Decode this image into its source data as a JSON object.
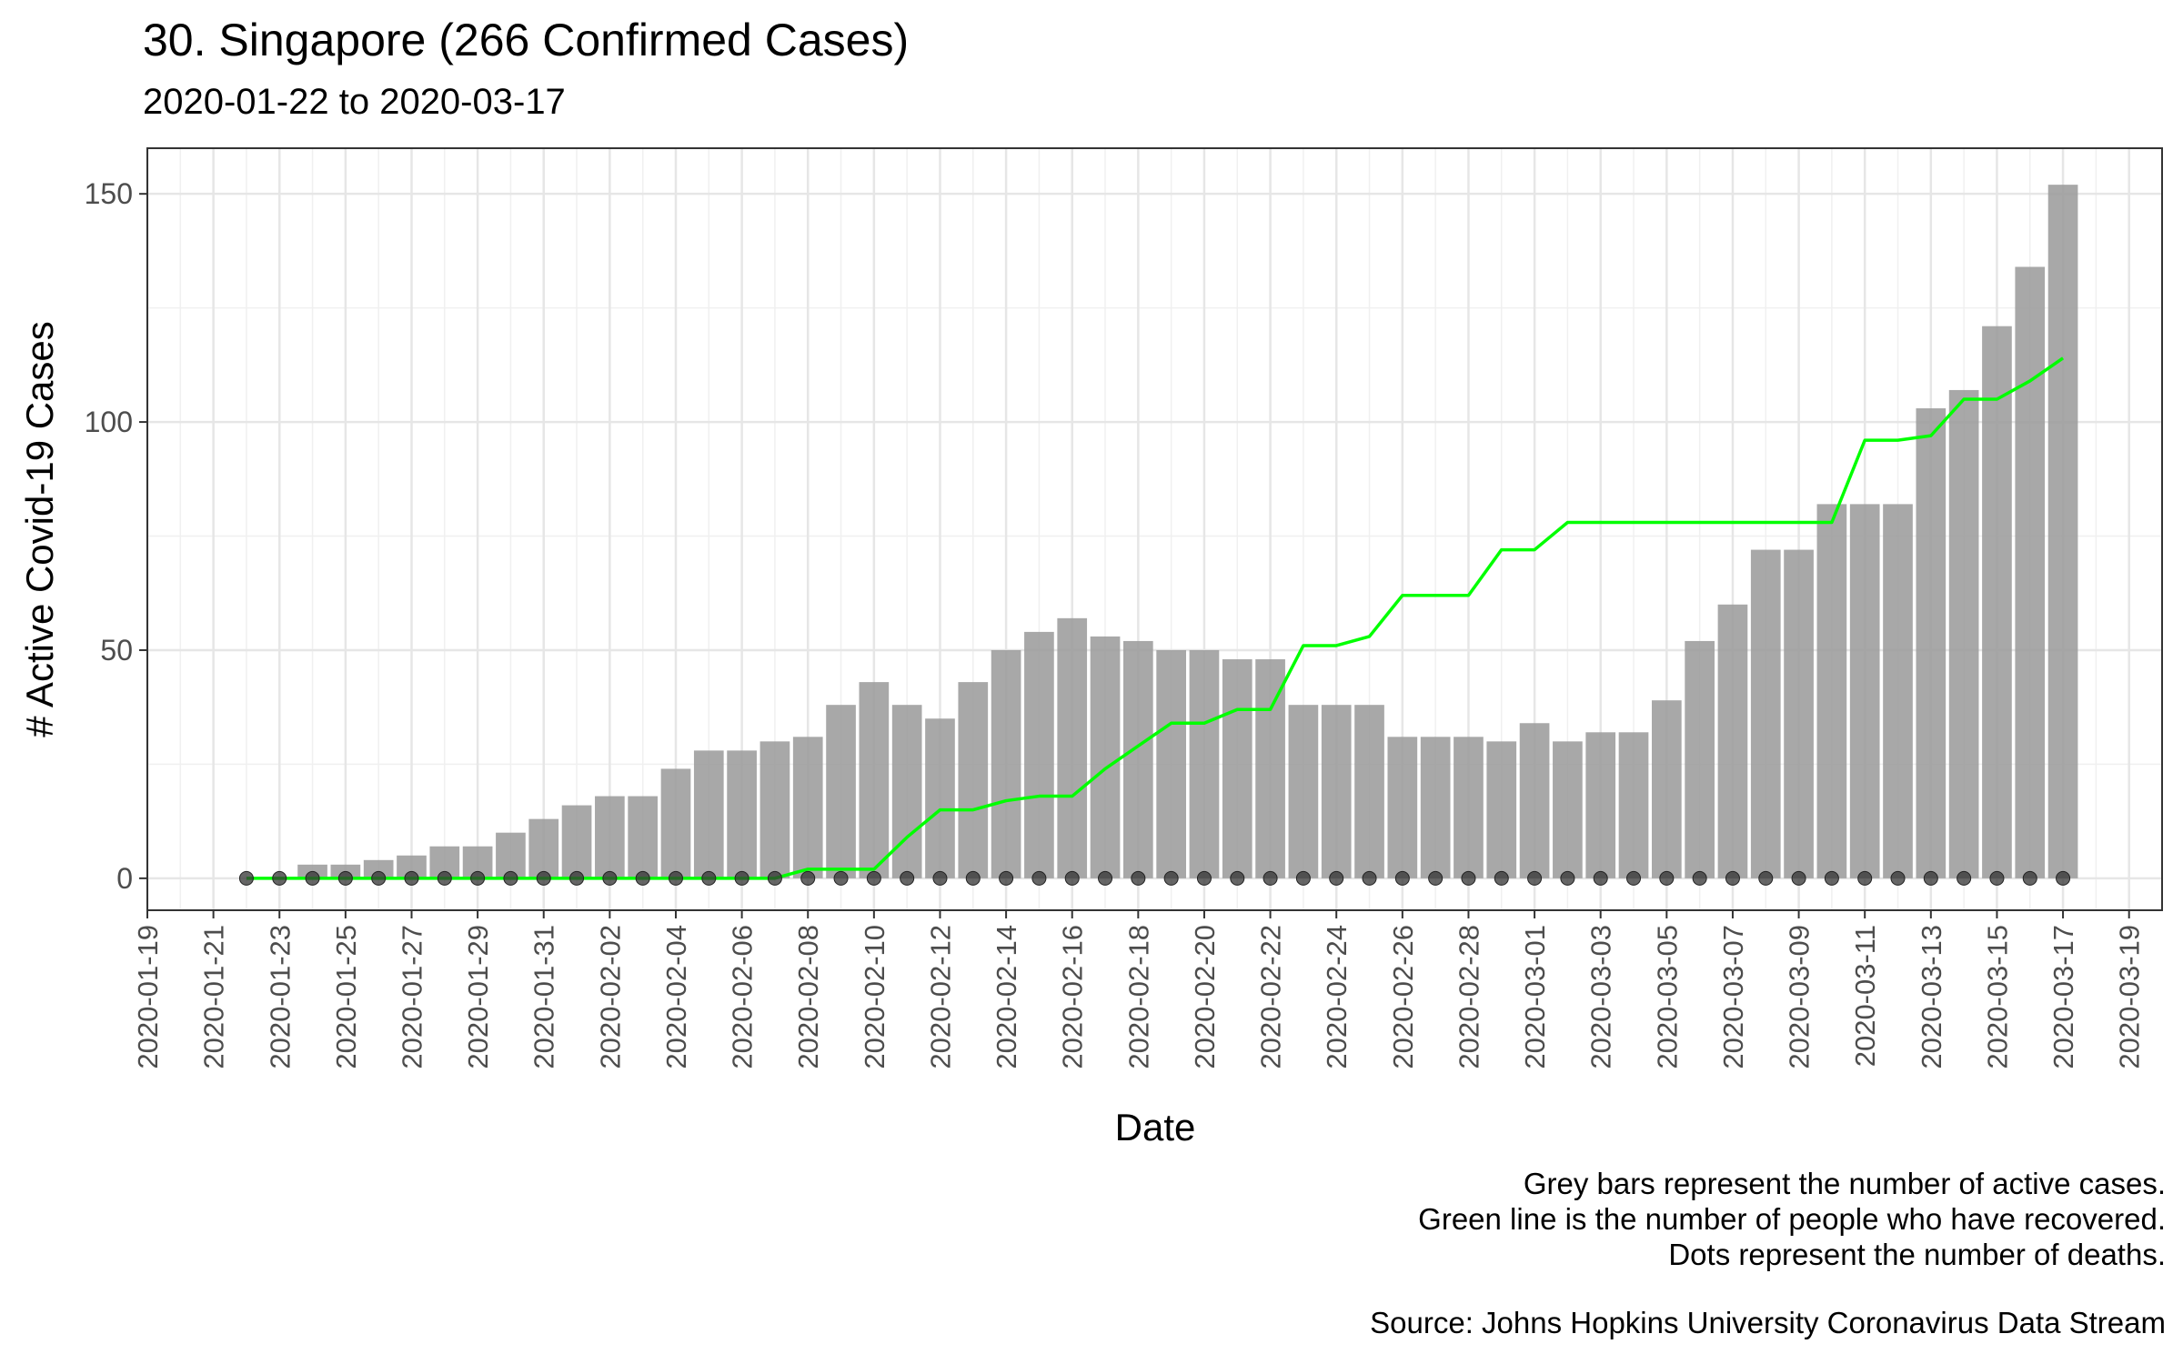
{
  "title": "30. Singapore (266 Confirmed Cases)",
  "subtitle": "2020-01-22 to 2020-03-17",
  "captions": {
    "line1": "Grey bars represent the number of active cases.",
    "line2": "Green line is the number of people who have recovered.",
    "line3": "Dots represent the number of deaths.",
    "source": "Source: Johns Hopkins University Coronavirus Data Stream"
  },
  "chart_data": {
    "type": "bar",
    "xlabel": "Date",
    "ylabel": "# Active Covid-19 Cases",
    "start_date": "2020-01-22",
    "dates": [
      "2020-01-22",
      "2020-01-23",
      "2020-01-24",
      "2020-01-25",
      "2020-01-26",
      "2020-01-27",
      "2020-01-28",
      "2020-01-29",
      "2020-01-30",
      "2020-01-31",
      "2020-02-01",
      "2020-02-02",
      "2020-02-03",
      "2020-02-04",
      "2020-02-05",
      "2020-02-06",
      "2020-02-07",
      "2020-02-08",
      "2020-02-09",
      "2020-02-10",
      "2020-02-11",
      "2020-02-12",
      "2020-02-13",
      "2020-02-14",
      "2020-02-15",
      "2020-02-16",
      "2020-02-17",
      "2020-02-18",
      "2020-02-19",
      "2020-02-20",
      "2020-02-21",
      "2020-02-22",
      "2020-02-23",
      "2020-02-24",
      "2020-02-25",
      "2020-02-26",
      "2020-02-27",
      "2020-02-28",
      "2020-02-29",
      "2020-03-01",
      "2020-03-02",
      "2020-03-03",
      "2020-03-04",
      "2020-03-05",
      "2020-03-06",
      "2020-03-07",
      "2020-03-08",
      "2020-03-09",
      "2020-03-10",
      "2020-03-11",
      "2020-03-12",
      "2020-03-13",
      "2020-03-14",
      "2020-03-15",
      "2020-03-16",
      "2020-03-17"
    ],
    "xlim": [
      "2020-01-19",
      "2020-03-20"
    ],
    "x_tick_labels": [
      "2020-01-19",
      "2020-01-21",
      "2020-01-23",
      "2020-01-25",
      "2020-01-27",
      "2020-01-29",
      "2020-01-31",
      "2020-02-02",
      "2020-02-04",
      "2020-02-06",
      "2020-02-08",
      "2020-02-10",
      "2020-02-12",
      "2020-02-14",
      "2020-02-16",
      "2020-02-18",
      "2020-02-20",
      "2020-02-22",
      "2020-02-24",
      "2020-02-26",
      "2020-02-28",
      "2020-03-01",
      "2020-03-03",
      "2020-03-05",
      "2020-03-07",
      "2020-03-09",
      "2020-03-11",
      "2020-03-13",
      "2020-03-15",
      "2020-03-17",
      "2020-03-19"
    ],
    "ylim": [
      -7,
      160
    ],
    "y_ticks": [
      0,
      50,
      100,
      150
    ],
    "grid": true,
    "series": [
      {
        "kind": "bar",
        "color": "#999999",
        "values": [
          0,
          0,
          3,
          3,
          4,
          5,
          7,
          7,
          10,
          13,
          16,
          18,
          18,
          24,
          28,
          28,
          30,
          31,
          38,
          43,
          38,
          35,
          43,
          50,
          54,
          57,
          53,
          52,
          50,
          50,
          48,
          48,
          38,
          38,
          38,
          31,
          31,
          31,
          30,
          34,
          30,
          32,
          32,
          39,
          52,
          60,
          72,
          72,
          82,
          82,
          82,
          103,
          107,
          121,
          134,
          152
        ]
      },
      {
        "kind": "line",
        "color": "#00ff00",
        "values": [
          0,
          0,
          0,
          0,
          0,
          0,
          0,
          0,
          0,
          0,
          0,
          0,
          0,
          0,
          0,
          0,
          0,
          2,
          2,
          2,
          9,
          15,
          15,
          17,
          18,
          18,
          24,
          29,
          34,
          34,
          37,
          37,
          51,
          51,
          53,
          62,
          62,
          62,
          72,
          72,
          78,
          78,
          78,
          78,
          78,
          78,
          78,
          78,
          78,
          96,
          96,
          97,
          105,
          105,
          109,
          114
        ]
      },
      {
        "kind": "point",
        "color": "#333333",
        "values": [
          0,
          0,
          0,
          0,
          0,
          0,
          0,
          0,
          0,
          0,
          0,
          0,
          0,
          0,
          0,
          0,
          0,
          0,
          0,
          0,
          0,
          0,
          0,
          0,
          0,
          0,
          0,
          0,
          0,
          0,
          0,
          0,
          0,
          0,
          0,
          0,
          0,
          0,
          0,
          0,
          0,
          0,
          0,
          0,
          0,
          0,
          0,
          0,
          0,
          0,
          0,
          0,
          0,
          0,
          0,
          0
        ]
      }
    ]
  }
}
